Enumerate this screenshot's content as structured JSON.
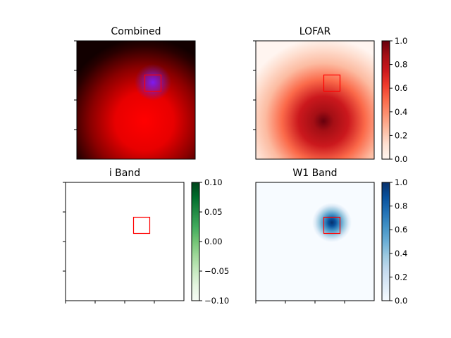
{
  "chart_data": [
    {
      "type": "heatmap",
      "title": "Combined",
      "colormap": "composite-rgb",
      "box_present": true,
      "axis_ticks": "unlabeled",
      "colorbar": false
    },
    {
      "type": "heatmap",
      "title": "LOFAR",
      "colormap": "Reds",
      "colorbar": true,
      "colorbar_range": [
        0.0,
        1.0
      ],
      "colorbar_ticks": [
        "0.0",
        "0.2",
        "0.4",
        "0.6",
        "0.8",
        "1.0"
      ],
      "box_present": true,
      "axis_ticks": "unlabeled"
    },
    {
      "type": "heatmap",
      "title": "i Band",
      "colormap": "Greens",
      "colorbar": true,
      "colorbar_range": [
        -0.1,
        0.1
      ],
      "colorbar_ticks": [
        "0.10",
        "0.05",
        "0.00",
        "−0.05",
        "−0.10"
      ],
      "box_present": true,
      "axis_ticks": "unlabeled",
      "image_values": "uniform 0.0"
    },
    {
      "type": "heatmap",
      "title": "W1 Band",
      "colormap": "Blues",
      "colorbar": true,
      "colorbar_range": [
        0.0,
        1.0
      ],
      "colorbar_ticks": [
        "0.0",
        "0.2",
        "0.4",
        "0.6",
        "0.8",
        "1.0"
      ],
      "box_present": true,
      "axis_ticks": "unlabeled"
    }
  ],
  "colors": {
    "box": "#ff0000",
    "reds": [
      "#fff5f0",
      "#fee0d2",
      "#fcbba1",
      "#fc9272",
      "#fb6a4a",
      "#ef3b2c",
      "#cb181d",
      "#a50f15",
      "#67000d"
    ],
    "greens": [
      "#f7fcf5",
      "#e5f5e0",
      "#c7e9c0",
      "#a1d99b",
      "#74c476",
      "#41ab5d",
      "#238b45",
      "#006d2c",
      "#00441b"
    ],
    "blues": [
      "#f7fbff",
      "#deebf7",
      "#c6dbef",
      "#9ecae1",
      "#6baed6",
      "#4292c6",
      "#2171b5",
      "#08519c",
      "#08306b"
    ]
  }
}
